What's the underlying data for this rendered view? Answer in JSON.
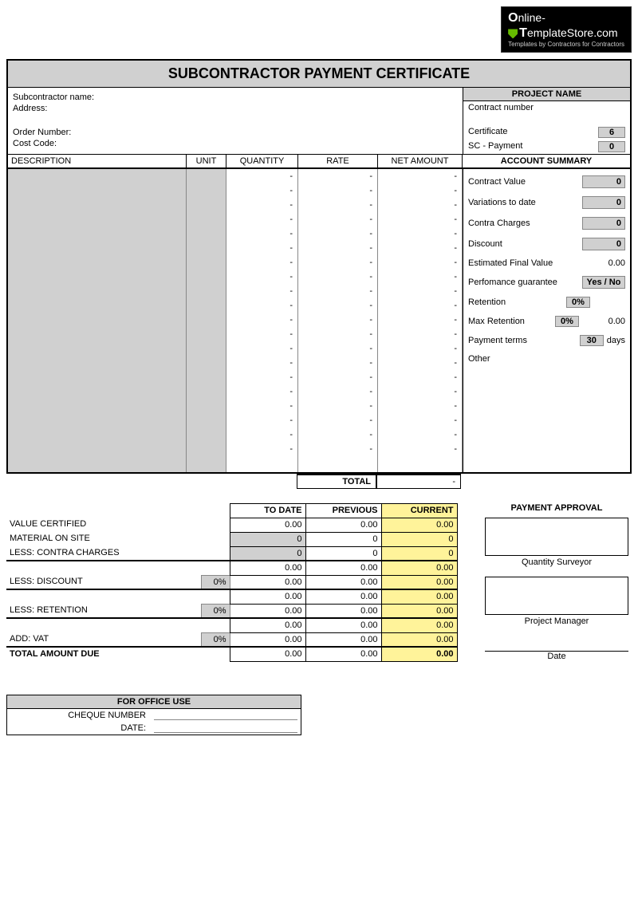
{
  "logo": {
    "line1a": "O",
    "line1b": "nline-",
    "line2a": "T",
    "line2b": "emplateStore",
    "line2c": ".com",
    "tagline": "Templates by Contractors for Contractors"
  },
  "title": "SUBCONTRACTOR PAYMENT CERTIFICATE",
  "header": {
    "subcontractor_label": "Subcontractor name:",
    "address_label": "Address:",
    "order_label": "Order Number:",
    "cost_label": "Cost Code:",
    "project_name_label": "PROJECT NAME",
    "contract_number_label": "Contract number",
    "certificate_label": "Certificate",
    "certificate_value": "6",
    "sc_payment_label": "SC - Payment",
    "sc_payment_value": "0"
  },
  "columns": {
    "description": "DESCRIPTION",
    "unit": "UNIT",
    "quantity": "QUANTITY",
    "rate": "RATE",
    "net_amount": "NET AMOUNT",
    "account_summary": "ACCOUNT SUMMARY"
  },
  "line_rows": 20,
  "dash": "-",
  "total_label": "TOTAL",
  "total_value": "-",
  "account": {
    "contract_value_label": "Contract Value",
    "contract_value": "0",
    "variations_label": "Variations to date",
    "variations": "0",
    "contra_label": "Contra Charges",
    "contra": "0",
    "discount_label": "Discount",
    "discount": "0",
    "est_final_label": "Estimated Final Value",
    "est_final": "0.00",
    "perf_label": "Perfomance guarantee",
    "perf": "Yes / No",
    "retention_label": "Retention",
    "retention": "0%",
    "max_retention_label": "Max Retention",
    "max_retention_pct": "0%",
    "max_retention_val": "0.00",
    "terms_label": "Payment terms",
    "terms_val": "30",
    "terms_unit": "days",
    "other_label": "Other"
  },
  "summary": {
    "hdr_todate": "TO DATE",
    "hdr_previous": "PREVIOUS",
    "hdr_current": "CURRENT",
    "value_certified": "VALUE CERTIFIED",
    "material": "MATERIAL ON SITE",
    "less_contra": "LESS: CONTRA CHARGES",
    "less_discount": "LESS: DISCOUNT",
    "less_retention": "LESS: RETENTION",
    "add_vat": "ADD: VAT",
    "total_due": "TOTAL AMOUNT DUE",
    "pct0": "0%",
    "z": "0",
    "zz": "0.00"
  },
  "approval": {
    "title": "PAYMENT APPROVAL",
    "qs": "Quantity Surveyor",
    "pm": "Project Manager",
    "date": "Date"
  },
  "office": {
    "title": "FOR OFFICE USE",
    "cheque": "CHEQUE NUMBER",
    "date": "DATE:"
  }
}
